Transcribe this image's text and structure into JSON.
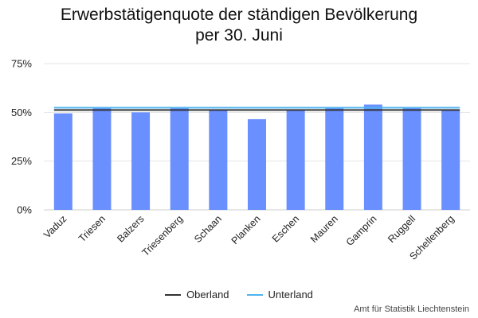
{
  "chart_data": {
    "type": "bar",
    "title_line1": "Erwerbstätigenquote der ständigen Bevölkerung",
    "title_line2": "per 30. Juni",
    "categories": [
      "Vaduz",
      "Triesen",
      "Balzers",
      "Triesenberg",
      "Schaan",
      "Planken",
      "Eschen",
      "Mauren",
      "Gamprin",
      "Ruggell",
      "Schellenberg"
    ],
    "values": [
      49.5,
      52.5,
      50,
      52.5,
      51,
      46.5,
      51,
      52.5,
      54,
      52.5,
      51
    ],
    "ylim": [
      0,
      75
    ],
    "yticks": [
      "0%",
      "25%",
      "50%",
      "75%"
    ],
    "ytick_values": [
      0,
      25,
      50,
      75
    ],
    "grid": true,
    "bar_color": "#6a8fff",
    "reference_lines": [
      {
        "name": "Oberland",
        "value": 51.2,
        "color": "#333333"
      },
      {
        "name": "Unterland",
        "value": 52.4,
        "color": "#4fb3ef"
      }
    ],
    "legend_position": "bottom"
  },
  "credit": "Amt für Statistik Liechtenstein"
}
